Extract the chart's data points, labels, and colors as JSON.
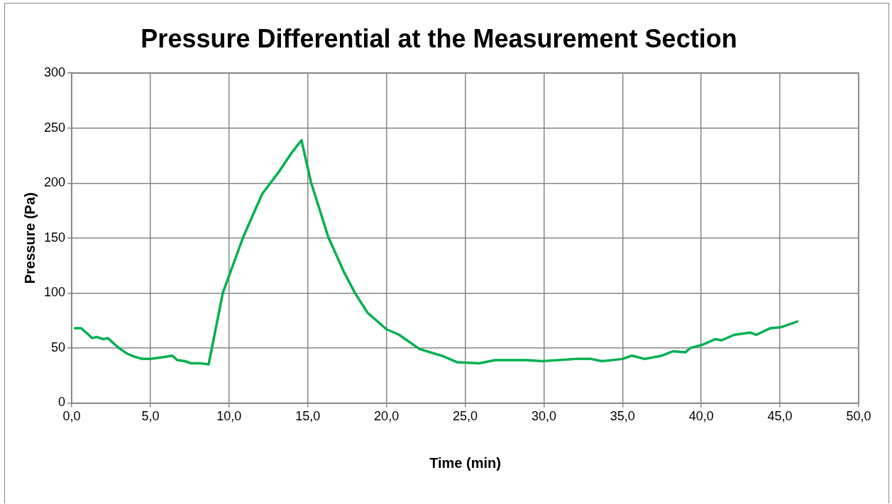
{
  "chart_data": {
    "type": "line",
    "title": "Pressure Differential at the Measurement Section",
    "xlabel": "Time (min)",
    "ylabel": "Pressure (Pa)",
    "series": [
      {
        "color": "#00b050",
        "x": [
          0.2,
          0.6,
          1.0,
          1.3,
          1.6,
          2.0,
          2.3,
          2.6,
          3.0,
          3.5,
          4.0,
          4.5,
          5.0,
          5.5,
          6.0,
          6.4,
          6.7,
          7.2,
          7.6,
          8.2,
          8.7,
          9.6,
          10.9,
          12.1,
          13.2,
          14.0,
          14.6,
          15.2,
          16.3,
          17.3,
          18.0,
          18.8,
          20.0,
          20.8,
          22.1,
          23.5,
          24.5,
          25.9,
          26.9,
          28.9,
          29.9,
          32.0,
          33.0,
          33.7,
          35.0,
          35.6,
          36.4,
          37.5,
          38.2,
          39.0,
          39.3,
          40.1,
          40.9,
          41.3,
          42.1,
          43.1,
          43.5,
          44.4,
          45.1,
          46.1
        ],
        "values": [
          68,
          68,
          63,
          59,
          60,
          58,
          59,
          55,
          50,
          45,
          42,
          40,
          40,
          41,
          42,
          43,
          39,
          38,
          36,
          36,
          35,
          100,
          151,
          190,
          211,
          228,
          239,
          201,
          151,
          119,
          100,
          82,
          67,
          62,
          49,
          43,
          37,
          36,
          39,
          39,
          38,
          40,
          40,
          38,
          40,
          43,
          40,
          43,
          47,
          46,
          50,
          53,
          58,
          57,
          62,
          64,
          62,
          68,
          69,
          74
        ]
      }
    ],
    "xlim": [
      0,
      50
    ],
    "xticks": [
      {
        "value": 0,
        "label": "0,0"
      },
      {
        "value": 5,
        "label": "5,0"
      },
      {
        "value": 10,
        "label": "10,0"
      },
      {
        "value": 15,
        "label": "15,0"
      },
      {
        "value": 20,
        "label": "20,0"
      },
      {
        "value": 25,
        "label": "25,0"
      },
      {
        "value": 30,
        "label": "30,0"
      },
      {
        "value": 35,
        "label": "35,0"
      },
      {
        "value": 40,
        "label": "40,0"
      },
      {
        "value": 45,
        "label": "45,0"
      },
      {
        "value": 50,
        "label": "50,0"
      }
    ],
    "ylim": [
      0,
      300
    ],
    "yticks": [
      0,
      50,
      100,
      150,
      200,
      250,
      300
    ],
    "grid": true,
    "marker": "none",
    "line_style": "solid"
  }
}
